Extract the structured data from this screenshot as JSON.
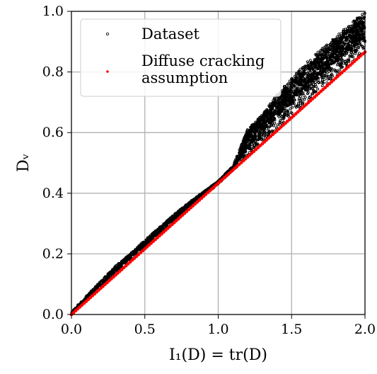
{
  "chart_data": {
    "type": "scatter",
    "title": "",
    "xlabel": "I₁(D) = tr(D)",
    "ylabel": "Dᵥ",
    "xlim": [
      0.0,
      2.0
    ],
    "ylim": [
      0.0,
      1.0
    ],
    "grid": true,
    "legend_position": "top-left",
    "x_ticks": [
      "0.0",
      "0.5",
      "1.0",
      "1.5",
      "2.0"
    ],
    "y_ticks": [
      "0.0",
      "0.2",
      "0.4",
      "0.6",
      "0.8",
      "1.0"
    ],
    "series": [
      {
        "name": "Dataset",
        "color": "#000000",
        "marker": "hollow-circle",
        "x": [
          0.0,
          0.1,
          0.2,
          0.3,
          0.4,
          0.5,
          0.6,
          0.7,
          0.8,
          0.9,
          1.0,
          1.1,
          1.2,
          1.3,
          1.4,
          1.5,
          1.6,
          1.7,
          1.8,
          1.9,
          2.0
        ],
        "y_lower": [
          0.0,
          0.045,
          0.09,
          0.135,
          0.18,
          0.222,
          0.262,
          0.305,
          0.35,
          0.39,
          0.43,
          0.475,
          0.52,
          0.57,
          0.61,
          0.655,
          0.695,
          0.74,
          0.78,
          0.825,
          0.865
        ],
        "y_upper": [
          0.01,
          0.06,
          0.11,
          0.16,
          0.2,
          0.245,
          0.288,
          0.33,
          0.37,
          0.405,
          0.44,
          0.49,
          0.61,
          0.66,
          0.725,
          0.78,
          0.83,
          0.875,
          0.915,
          0.96,
          1.0
        ]
      },
      {
        "name": "Diffuse cracking assumption",
        "color": "#ff0000",
        "marker": "dot",
        "x": [
          0.0,
          2.0
        ],
        "y": [
          0.0,
          0.866
        ]
      }
    ],
    "legend": {
      "entries": [
        "Dataset",
        "Diffuse cracking\nassumption"
      ]
    }
  }
}
